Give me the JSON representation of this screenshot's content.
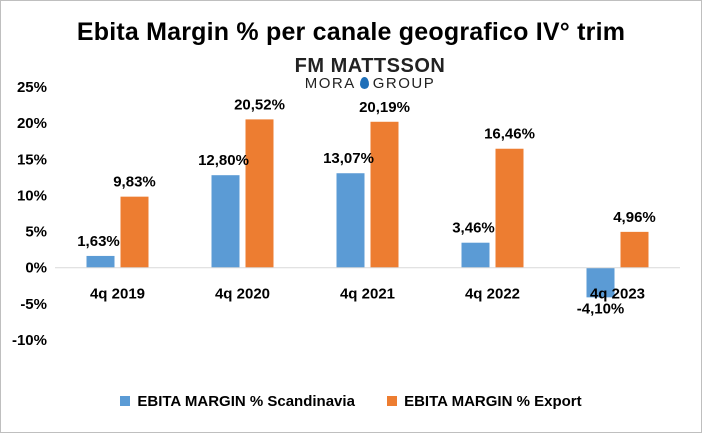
{
  "logo": {
    "top": "FM MATTSSON",
    "bottom_left": "MORA",
    "bottom_right": "GROUP",
    "drop_color": "#1f6fb8"
  },
  "chart_data": {
    "type": "bar",
    "title": "Ebita Margin % per canale geografico IV° trim",
    "categories": [
      "4q 2019",
      "4q 2020",
      "4q 2021",
      "4q 2022",
      "4q 2023"
    ],
    "series": [
      {
        "name": "EBITA MARGIN % Scandinavia",
        "color": "#5b9bd5",
        "values": [
          1.63,
          12.8,
          13.07,
          3.46,
          -4.1
        ],
        "labels": [
          "1,63%",
          "12,80%",
          "13,07%",
          "3,46%",
          "-4,10%"
        ]
      },
      {
        "name": "EBITA MARGIN % Export",
        "color": "#ed7d31",
        "values": [
          9.83,
          20.52,
          20.19,
          16.46,
          4.96
        ],
        "labels": [
          "9,83%",
          "20,52%",
          "20,19%",
          "16,46%",
          "4,96%"
        ]
      }
    ],
    "ylim": [
      -10,
      25
    ],
    "yticks": [
      25,
      20,
      15,
      10,
      5,
      0,
      -5,
      -10
    ],
    "ytick_labels": [
      "25%",
      "20%",
      "15%",
      "10%",
      "5%",
      "0%",
      "-5%",
      "-10%"
    ],
    "grid": false,
    "legend": "bottom"
  }
}
